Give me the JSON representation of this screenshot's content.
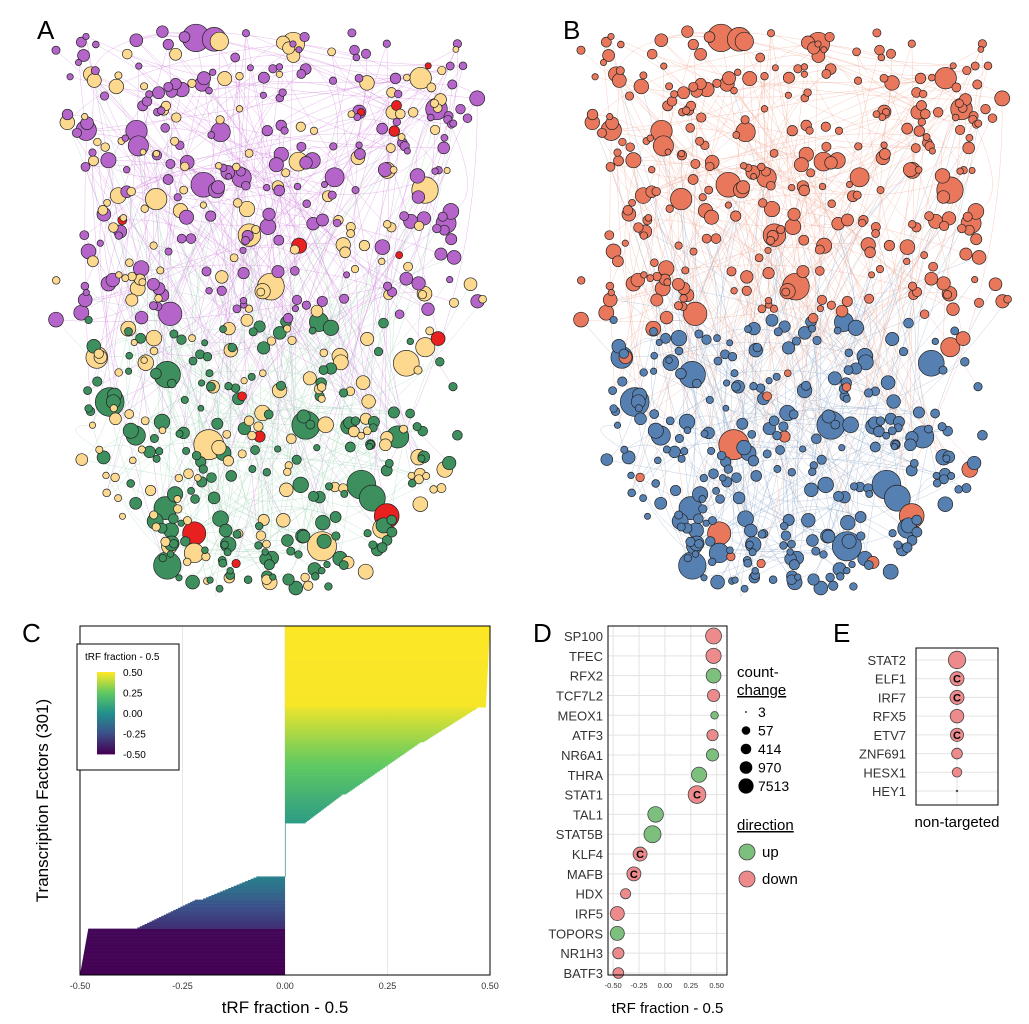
{
  "panels": {
    "a": "A",
    "b": "B",
    "c": "C",
    "d": "D",
    "e": "E"
  },
  "colors": {
    "network_purple": "#b565c9",
    "network_green": "#3d8f5e",
    "network_yellow": "#fcd98e",
    "network_red": "#e8201f",
    "network_orange": "#e9775c",
    "network_blue": "#5780b2",
    "edge_purple": "#d27fdc",
    "edge_green": "#9fd3b4",
    "edge_orange": "#f0a58f",
    "edge_blue": "#8ca7c8",
    "up": "#7dbf7d",
    "down": "#ec8a8c"
  },
  "chart_data": [
    {
      "panel": "C",
      "type": "bar",
      "orientation": "horizontal",
      "xlabel": "tRF fraction - 0.5",
      "ylabel": "Transcription Factors (301)",
      "xlim": [
        -0.5,
        0.5
      ],
      "xticks": [
        "-0.50",
        "-0.25",
        "0.00",
        "0.25",
        "0.50"
      ],
      "n_bars": 301,
      "sorted": "ascending",
      "segments": [
        {
          "count": 40,
          "from": -0.5,
          "to": -0.48
        },
        {
          "count": 25,
          "from": -0.36,
          "to": -0.22
        },
        {
          "count": 20,
          "from": -0.2,
          "to": -0.07
        },
        {
          "count": 46,
          "from": 0.0,
          "to": 0.0
        },
        {
          "count": 25,
          "from": 0.05,
          "to": 0.14
        },
        {
          "count": 45,
          "from": 0.15,
          "to": 0.33
        },
        {
          "count": 30,
          "from": 0.34,
          "to": 0.47
        },
        {
          "count": 70,
          "from": 0.49,
          "to": 0.5
        }
      ],
      "legend": {
        "title": "tRF fraction - 0.5",
        "labels": [
          "0.50",
          "0.25",
          "0.00",
          "-0.25",
          "-0.50"
        ],
        "colormap": [
          "#fde725",
          "#5ec962",
          "#21918c",
          "#3b528b",
          "#440154"
        ]
      }
    },
    {
      "panel": "D",
      "type": "scatter",
      "xlabel": "tRF fraction - 0.5",
      "xticks": [
        "-0.50",
        "-0.25",
        "0.00",
        "0.25",
        "0.50"
      ],
      "xlim": [
        -0.55,
        0.6
      ],
      "size_legend": {
        "title_line1": "count-",
        "title_line2": "change",
        "values": [
          "3",
          "57",
          "414",
          "970",
          "7513"
        ]
      },
      "color_legend": {
        "title": "direction",
        "entries": [
          "up",
          "down"
        ]
      },
      "c_marker": "C",
      "points": [
        {
          "label": "SP100",
          "x": 0.47,
          "direction": "down",
          "size": 2200,
          "c": false
        },
        {
          "label": "TFEC",
          "x": 0.47,
          "direction": "down",
          "size": 2000,
          "c": false
        },
        {
          "label": "RFX2",
          "x": 0.47,
          "direction": "up",
          "size": 1900,
          "c": false
        },
        {
          "label": "TCF7L2",
          "x": 0.47,
          "direction": "down",
          "size": 1300,
          "c": false
        },
        {
          "label": "MEOX1",
          "x": 0.48,
          "direction": "up",
          "size": 500,
          "c": false
        },
        {
          "label": "ATF3",
          "x": 0.46,
          "direction": "down",
          "size": 1100,
          "c": false
        },
        {
          "label": "NR6A1",
          "x": 0.46,
          "direction": "up",
          "size": 1300,
          "c": false
        },
        {
          "label": "THRA",
          "x": 0.33,
          "direction": "up",
          "size": 2000,
          "c": false
        },
        {
          "label": "STAT1",
          "x": 0.31,
          "direction": "down",
          "size": 2700,
          "c": true
        },
        {
          "label": "TAL1",
          "x": -0.09,
          "direction": "up",
          "size": 2100,
          "c": false
        },
        {
          "label": "STAT5B",
          "x": -0.12,
          "direction": "up",
          "size": 2500,
          "c": false
        },
        {
          "label": "KLF4",
          "x": -0.24,
          "direction": "down",
          "size": 1700,
          "c": true
        },
        {
          "label": "MAFB",
          "x": -0.3,
          "direction": "down",
          "size": 1700,
          "c": true
        },
        {
          "label": "HDX",
          "x": -0.38,
          "direction": "down",
          "size": 900,
          "c": false
        },
        {
          "label": "IRF5",
          "x": -0.46,
          "direction": "down",
          "size": 1700,
          "c": false
        },
        {
          "label": "TOPORS",
          "x": -0.46,
          "direction": "up",
          "size": 1700,
          "c": false
        },
        {
          "label": "NR1H3",
          "x": -0.45,
          "direction": "down",
          "size": 1100,
          "c": false
        },
        {
          "label": "BATF3",
          "x": -0.45,
          "direction": "down",
          "size": 1000,
          "c": false
        }
      ]
    },
    {
      "panel": "E",
      "type": "scatter",
      "xlabel": "non-targeted",
      "c_marker": "C",
      "points": [
        {
          "label": "STAT2",
          "direction": "down",
          "size": 2600,
          "c": false
        },
        {
          "label": "ELF1",
          "direction": "down",
          "size": 1700,
          "c": true
        },
        {
          "label": "IRF7",
          "direction": "down",
          "size": 1700,
          "c": true
        },
        {
          "label": "RFX5",
          "direction": "down",
          "size": 1600,
          "c": false
        },
        {
          "label": "ETV7",
          "direction": "down",
          "size": 1500,
          "c": true
        },
        {
          "label": "ZNF691",
          "direction": "down",
          "size": 1000,
          "c": false
        },
        {
          "label": "HESX1",
          "direction": "down",
          "size": 800,
          "c": false
        },
        {
          "label": "HEY1",
          "direction": "down",
          "size": 3,
          "c": false
        }
      ]
    }
  ]
}
